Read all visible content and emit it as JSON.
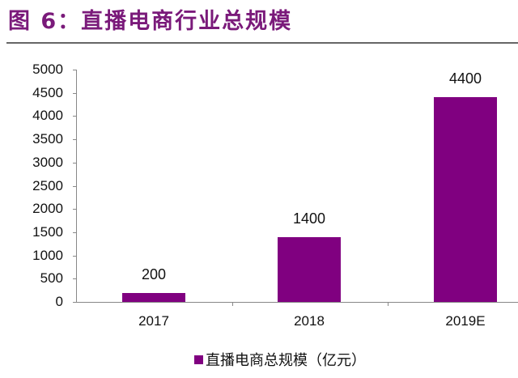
{
  "title": "图 6：直播电商行业总规模",
  "colors": {
    "bar": "#800080",
    "title": "#7a1a7a"
  },
  "chart_data": {
    "type": "bar",
    "title": "图 6：直播电商行业总规模",
    "categories": [
      "2017",
      "2018",
      "2019E"
    ],
    "series": [
      {
        "name": "直播电商总规模（亿元）",
        "values": [
          200,
          1400,
          4400
        ]
      }
    ],
    "data_labels": [
      "200",
      "1400",
      "4400"
    ],
    "xlabel": "",
    "ylabel": "",
    "ylim": [
      0,
      5000
    ],
    "yticks": [
      "0",
      "500",
      "1000",
      "1500",
      "2000",
      "2500",
      "3000",
      "3500",
      "4000",
      "4500",
      "5000"
    ],
    "grid": false,
    "legend_position": "bottom"
  },
  "legend": {
    "label": "直播电商总规模（亿元）"
  }
}
